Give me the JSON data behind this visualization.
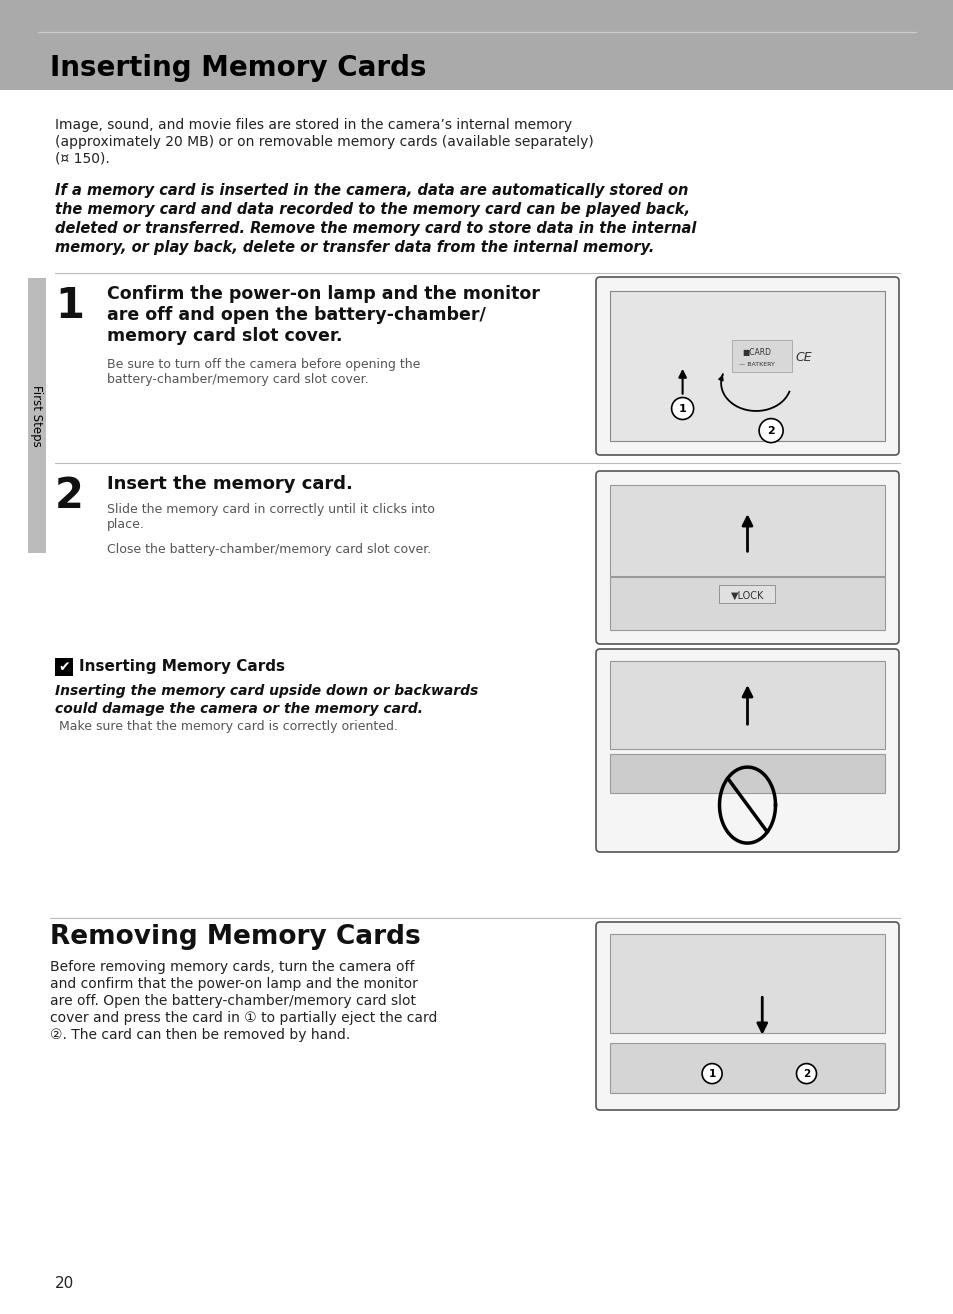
{
  "page_bg": "#ffffff",
  "header_bg": "#aaaaaa",
  "header_text": "Inserting Memory Cards",
  "header_text_color": "#000000",
  "sidebar_bg": "#bbbbbb",
  "sidebar_text": "First Steps",
  "sidebar_text_color": "#000000",
  "body_intro_line1": "Image, sound, and movie files are stored in the camera’s internal memory",
  "body_intro_line2": "(approximately 20 MB) or on removable memory cards (available separately)",
  "body_intro_line3": "(¤ 150).",
  "italic_block_lines": [
    "If a memory card is inserted in the camera, data are automatically stored on",
    "the memory card and data recorded to the memory card can be played back,",
    "deleted or transferred. Remove the memory card to store data in the internal",
    "memory, or play back, delete or transfer data from the internal memory."
  ],
  "step1_num": "1",
  "step1_heading_lines": [
    "Confirm the power-on lamp and the monitor",
    "are off and open the battery-chamber/",
    "memory card slot cover."
  ],
  "step1_sub_lines": [
    "Be sure to turn off the camera before opening the",
    "battery-chamber/memory card slot cover."
  ],
  "step2_num": "2",
  "step2_heading": "Insert the memory card.",
  "step2_sub1_lines": [
    "Slide the memory card in correctly until it clicks into",
    "place."
  ],
  "step2_sub2": "Close the battery-chamber/memory card slot cover.",
  "note_heading": "Inserting Memory Cards",
  "note_bold_lines": [
    "Inserting the memory card upside down or backwards",
    "could damage the camera or the memory card."
  ],
  "note_normal": " Make sure that the memory card is correctly oriented.",
  "section2_heading": "Removing Memory Cards",
  "section2_body_lines": [
    "Before removing memory cards, turn the camera off",
    "and confirm that the power-on lamp and the monitor",
    "are off. Open the battery-chamber/memory card slot",
    "cover and press the card in ① to partially eject the card",
    "②. The card can then be removed by hand."
  ],
  "page_num": "20",
  "line_color": "#bbbbbb",
  "img_border": "#555555",
  "img_fill": "#f5f5f5"
}
